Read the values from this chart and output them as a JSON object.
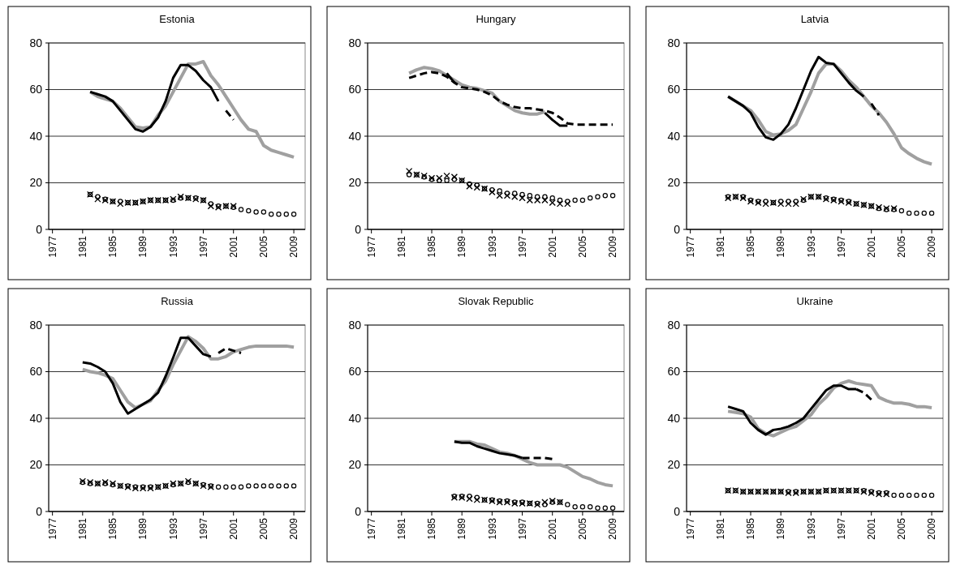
{
  "chart_data": [
    {
      "type": "line",
      "title": "Estonia",
      "x": [
        1982,
        1983,
        1984,
        1985,
        1986,
        1987,
        1988,
        1989,
        1990,
        1991,
        1992,
        1993,
        1994,
        1995,
        1996,
        1997,
        1998,
        1999,
        2000,
        2001,
        2002,
        2003,
        2004,
        2005,
        2006,
        2007,
        2008,
        2009
      ],
      "xlim": [
        1976.5,
        2010.5
      ],
      "xticks": [
        1977,
        1981,
        1985,
        1989,
        1993,
        1997,
        2001,
        2005,
        2009
      ],
      "ylim": [
        0,
        80
      ],
      "yticks": [
        0,
        20,
        40,
        60,
        80
      ],
      "grid": "y",
      "series": [
        {
          "type": "line",
          "color": "#a0a0a0",
          "line_style": "solid",
          "values": [
            59,
            57,
            56,
            55,
            52,
            48,
            44,
            43.5,
            44,
            49,
            53,
            59,
            65,
            71,
            71,
            72,
            66,
            62,
            57,
            52,
            47,
            43,
            42,
            36,
            34,
            33,
            32,
            31
          ]
        },
        {
          "type": "line",
          "color": "#000000",
          "line_style": "solid",
          "values": [
            59,
            58,
            57,
            55,
            51,
            47,
            43,
            42,
            44,
            48,
            55,
            65,
            70.5,
            70.5,
            68,
            64,
            61,
            55,
            null,
            null,
            null,
            null,
            null,
            null,
            null,
            null,
            null,
            null
          ]
        },
        {
          "type": "line",
          "color": "#000000",
          "line_style": "dashed",
          "values": [
            null,
            null,
            null,
            null,
            null,
            null,
            null,
            null,
            null,
            null,
            null,
            null,
            null,
            null,
            null,
            null,
            null,
            null,
            51,
            47,
            null,
            null,
            null,
            null,
            null,
            null,
            null,
            null
          ]
        },
        {
          "type": "scatter",
          "color": "#000000",
          "marker": "cross",
          "values": [
            15,
            13,
            12.5,
            12,
            11,
            11.5,
            11.5,
            12,
            12.5,
            12.5,
            12.5,
            13,
            14,
            13.5,
            13,
            12.5,
            10,
            9.5,
            10,
            10,
            null,
            null,
            null,
            null,
            null,
            null,
            null,
            null
          ]
        },
        {
          "type": "scatter",
          "color": "#000000",
          "marker": "circle",
          "values": [
            15,
            14,
            13,
            12,
            12,
            11.5,
            11.5,
            12,
            12.5,
            12.5,
            12.5,
            12.5,
            13.5,
            13.5,
            13.5,
            12.5,
            11,
            10,
            10,
            9.5,
            8.5,
            8,
            7.5,
            7.5,
            6.5,
            6.5,
            6.5,
            6.5
          ]
        }
      ]
    },
    {
      "type": "line",
      "title": "Hungary",
      "x": [
        1982,
        1983,
        1984,
        1985,
        1986,
        1987,
        1988,
        1989,
        1990,
        1991,
        1992,
        1993,
        1994,
        1995,
        1996,
        1997,
        1998,
        1999,
        2000,
        2001,
        2002,
        2003,
        2004,
        2005,
        2006,
        2007,
        2008,
        2009
      ],
      "xlim": [
        1976.5,
        2010.5
      ],
      "xticks": [
        1977,
        1981,
        1985,
        1989,
        1993,
        1997,
        2001,
        2005,
        2009
      ],
      "ylim": [
        0,
        80
      ],
      "yticks": [
        0,
        20,
        40,
        60,
        80
      ],
      "grid": "y",
      "series": [
        {
          "type": "line",
          "color": "#a0a0a0",
          "line_style": "solid",
          "values": [
            67,
            68.5,
            69.5,
            69,
            68,
            66,
            64,
            62,
            61,
            60.5,
            59.5,
            58.5,
            55,
            53,
            51,
            50,
            49.5,
            49.5,
            50.5,
            null,
            null,
            null,
            null,
            null,
            null,
            null,
            null,
            null
          ]
        },
        {
          "type": "line",
          "color": "#000000",
          "line_style": "solid",
          "values": [
            null,
            null,
            null,
            null,
            null,
            67,
            63,
            null,
            null,
            null,
            null,
            null,
            null,
            null,
            null,
            null,
            null,
            null,
            50,
            47,
            44.5,
            44.5,
            null,
            null,
            null,
            null,
            null,
            null
          ]
        },
        {
          "type": "line",
          "color": "#000000",
          "line_style": "dashed",
          "values": [
            65,
            66,
            67,
            67.5,
            67,
            65.5,
            63,
            61,
            60.5,
            60,
            59,
            57.5,
            55,
            53.5,
            52.5,
            52,
            52,
            51.5,
            51,
            50,
            48,
            45.5,
            45,
            45,
            45,
            45,
            45,
            45
          ]
        },
        {
          "type": "scatter",
          "color": "#000000",
          "marker": "cross",
          "values": [
            25,
            23.5,
            23,
            22,
            22,
            23,
            22.5,
            21,
            18.5,
            18,
            17.5,
            16,
            14.5,
            14.5,
            14,
            13.5,
            12.5,
            12.5,
            12.5,
            11.5,
            11,
            11,
            null,
            null,
            null,
            null,
            null,
            null
          ]
        },
        {
          "type": "scatter",
          "color": "#000000",
          "marker": "circle",
          "values": [
            23.5,
            23.5,
            22.5,
            21.5,
            21,
            21,
            21.5,
            21,
            19.5,
            19,
            17.5,
            17,
            16.5,
            15.5,
            15.5,
            15,
            14.5,
            14,
            14,
            13.5,
            12.5,
            12,
            12.5,
            12.5,
            13.5,
            14,
            14.5,
            14.5
          ]
        }
      ]
    },
    {
      "type": "line",
      "title": "Latvia",
      "x": [
        1982,
        1983,
        1984,
        1985,
        1986,
        1987,
        1988,
        1989,
        1990,
        1991,
        1992,
        1993,
        1994,
        1995,
        1996,
        1997,
        1998,
        1999,
        2000,
        2001,
        2002,
        2003,
        2004,
        2005,
        2006,
        2007,
        2008,
        2009
      ],
      "xlim": [
        1976.5,
        2010.5
      ],
      "xticks": [
        1977,
        1981,
        1985,
        1989,
        1993,
        1997,
        2001,
        2005,
        2009
      ],
      "ylim": [
        0,
        80
      ],
      "yticks": [
        0,
        20,
        40,
        60,
        80
      ],
      "grid": "y",
      "series": [
        {
          "type": "line",
          "color": "#a0a0a0",
          "line_style": "solid",
          "values": [
            57,
            55,
            53,
            51,
            47,
            42,
            40.5,
            41,
            42.5,
            45,
            52,
            59,
            67,
            71,
            71,
            68,
            64,
            61,
            57,
            53,
            50,
            46,
            41,
            35,
            32.5,
            30.5,
            29,
            28
          ]
        },
        {
          "type": "line",
          "color": "#000000",
          "line_style": "solid",
          "values": [
            57,
            55,
            53,
            50,
            44,
            39.5,
            38.5,
            41,
            45,
            52,
            60,
            68,
            74,
            71.5,
            71,
            67,
            63,
            59.5,
            57,
            null,
            null,
            null,
            null,
            null,
            null,
            null,
            null,
            null
          ]
        },
        {
          "type": "line",
          "color": "#000000",
          "line_style": "dashed",
          "values": [
            null,
            null,
            null,
            null,
            null,
            null,
            null,
            null,
            null,
            null,
            null,
            null,
            null,
            null,
            null,
            null,
            null,
            null,
            null,
            54,
            49,
            null,
            null,
            null,
            null,
            null,
            null,
            null
          ]
        },
        {
          "type": "scatter",
          "color": "#000000",
          "marker": "cross",
          "values": [
            13.5,
            14,
            13.5,
            12,
            11.5,
            11,
            11.5,
            11,
            11,
            11,
            13,
            14,
            14,
            13,
            12.5,
            12,
            11.5,
            11,
            10.5,
            10,
            9.5,
            9,
            9,
            null,
            null,
            null,
            null,
            null
          ]
        },
        {
          "type": "scatter",
          "color": "#000000",
          "marker": "circle",
          "values": [
            14,
            14,
            14,
            12.5,
            12,
            12,
            11.5,
            12,
            12,
            12,
            12.5,
            14,
            14,
            13.5,
            13,
            12.5,
            12,
            11,
            10.5,
            10,
            9,
            8.5,
            8.5,
            8,
            7,
            7,
            7,
            7
          ]
        }
      ]
    },
    {
      "type": "line",
      "title": "Russia",
      "x": [
        1981,
        1982,
        1983,
        1984,
        1985,
        1986,
        1987,
        1988,
        1989,
        1990,
        1991,
        1992,
        1993,
        1994,
        1995,
        1996,
        1997,
        1998,
        1999,
        2000,
        2001,
        2002,
        2003,
        2004,
        2005,
        2006,
        2007,
        2008,
        2009
      ],
      "xlim": [
        1976.5,
        2010.5
      ],
      "xticks": [
        1977,
        1981,
        1985,
        1989,
        1993,
        1997,
        2001,
        2005,
        2009
      ],
      "ylim": [
        0,
        80
      ],
      "yticks": [
        0,
        20,
        40,
        60,
        80
      ],
      "grid": "y",
      "series": [
        {
          "type": "line",
          "color": "#a0a0a0",
          "line_style": "solid",
          "values": [
            61,
            60,
            59.5,
            58.5,
            57,
            52,
            47,
            44.5,
            46,
            47.5,
            52,
            56,
            63,
            69,
            75,
            73,
            70,
            65.5,
            65.5,
            66.5,
            68.5,
            69.5,
            70.5,
            71,
            71,
            71,
            71,
            71,
            70.5
          ]
        },
        {
          "type": "line",
          "color": "#000000",
          "line_style": "solid",
          "values": [
            64,
            63.5,
            62,
            60,
            55,
            47,
            42,
            44,
            46,
            48,
            51,
            58,
            66,
            74.5,
            74.5,
            71,
            67.5,
            66.5,
            null,
            null,
            null,
            null,
            null,
            null,
            null,
            null,
            null,
            null,
            null
          ]
        },
        {
          "type": "line",
          "color": "#000000",
          "line_style": "dashed",
          "values": [
            null,
            null,
            null,
            null,
            null,
            null,
            null,
            null,
            null,
            null,
            null,
            null,
            null,
            null,
            null,
            null,
            null,
            null,
            68,
            70,
            69,
            68,
            null,
            null,
            null,
            null,
            null,
            null,
            null
          ]
        },
        {
          "type": "scatter",
          "color": "#000000",
          "marker": "cross",
          "values": [
            13,
            12.5,
            12,
            12.5,
            12,
            11,
            10.5,
            10,
            10,
            10,
            10.5,
            11,
            12,
            12,
            13,
            12,
            11,
            10.5,
            null,
            null,
            null,
            null,
            null,
            null,
            null,
            null,
            null,
            null,
            null
          ]
        },
        {
          "type": "scatter",
          "color": "#000000",
          "marker": "circle",
          "values": [
            12.5,
            12,
            12,
            12,
            11.5,
            11,
            11,
            10.5,
            10.5,
            10.5,
            10.5,
            11,
            11.5,
            12,
            12.5,
            12,
            11.5,
            11,
            10.5,
            10.5,
            10.5,
            10.5,
            11,
            11,
            11,
            11,
            11,
            11,
            11
          ]
        }
      ]
    },
    {
      "type": "line",
      "title": "Slovak Republic",
      "x": [
        1988,
        1989,
        1990,
        1991,
        1992,
        1993,
        1994,
        1995,
        1996,
        1997,
        1998,
        1999,
        2000,
        2001,
        2002,
        2003,
        2004,
        2005,
        2006,
        2007,
        2008,
        2009
      ],
      "xlim": [
        1976.5,
        2010.5
      ],
      "xticks": [
        1977,
        1981,
        1985,
        1989,
        1993,
        1997,
        2001,
        2005,
        2009
      ],
      "ylim": [
        0,
        80
      ],
      "yticks": [
        0,
        20,
        40,
        60,
        80
      ],
      "grid": "y",
      "series": [
        {
          "type": "line",
          "color": "#a0a0a0",
          "line_style": "solid",
          "values": [
            30,
            30,
            30,
            29,
            28.5,
            27,
            25.5,
            25,
            24,
            22.5,
            21,
            20,
            20,
            20,
            20,
            19,
            17,
            15,
            14,
            12.5,
            11.5,
            11
          ]
        },
        {
          "type": "line",
          "color": "#000000",
          "line_style": "solid",
          "values": [
            30,
            29.5,
            29.5,
            28,
            27,
            26,
            25,
            24.5,
            24,
            23,
            null,
            null,
            null,
            null,
            null,
            null,
            null,
            null,
            null,
            null,
            null,
            null
          ]
        },
        {
          "type": "line",
          "color": "#000000",
          "line_style": "dashed",
          "values": [
            null,
            null,
            null,
            null,
            null,
            null,
            null,
            null,
            null,
            23,
            23,
            23,
            23,
            22.5,
            null,
            null,
            null,
            null,
            null,
            null,
            null,
            null
          ]
        },
        {
          "type": "scatter",
          "color": "#000000",
          "marker": "cross",
          "values": [
            6,
            6,
            5.5,
            5,
            5,
            4.5,
            4,
            4,
            3.5,
            3.5,
            3.5,
            3,
            4,
            4.5,
            4,
            null,
            null,
            null,
            null,
            null,
            null,
            null
          ]
        },
        {
          "type": "scatter",
          "color": "#000000",
          "marker": "circle",
          "values": [
            6.5,
            6.5,
            6.5,
            6,
            5,
            5,
            4.5,
            4.5,
            4,
            4,
            3.5,
            3.5,
            3,
            4,
            4,
            3,
            2,
            2,
            2,
            1.5,
            1.5,
            1.5
          ]
        }
      ]
    },
    {
      "type": "line",
      "title": "Ukraine",
      "x": [
        1982,
        1983,
        1984,
        1985,
        1986,
        1987,
        1988,
        1989,
        1990,
        1991,
        1992,
        1993,
        1994,
        1995,
        1996,
        1997,
        1998,
        1999,
        2000,
        2001,
        2002,
        2003,
        2004,
        2005,
        2006,
        2007,
        2008,
        2009
      ],
      "xlim": [
        1976.5,
        2010.5
      ],
      "xticks": [
        1977,
        1981,
        1985,
        1989,
        1993,
        1997,
        2001,
        2005,
        2009
      ],
      "ylim": [
        0,
        80
      ],
      "yticks": [
        0,
        20,
        40,
        60,
        80
      ],
      "grid": "y",
      "series": [
        {
          "type": "line",
          "color": "#a0a0a0",
          "line_style": "solid",
          "values": [
            43,
            42.5,
            42,
            40.5,
            35.5,
            33.5,
            32.5,
            34,
            35.5,
            36.5,
            39,
            41.5,
            46,
            49,
            53,
            55,
            56,
            55,
            54.5,
            54,
            49,
            47.5,
            46.5,
            46.5,
            46,
            45,
            45,
            44.5
          ]
        },
        {
          "type": "line",
          "color": "#000000",
          "line_style": "solid",
          "values": [
            45,
            44,
            43,
            38,
            35,
            33,
            35,
            35.5,
            36.5,
            38,
            40,
            44,
            48,
            52,
            54,
            54,
            52.5,
            52.5,
            null,
            null,
            null,
            null,
            null,
            null,
            null,
            null,
            null,
            null
          ]
        },
        {
          "type": "line",
          "color": "#000000",
          "line_style": "dashed",
          "values": [
            null,
            null,
            null,
            null,
            null,
            null,
            null,
            null,
            null,
            null,
            null,
            null,
            null,
            null,
            null,
            null,
            null,
            52.5,
            51,
            48,
            null,
            null,
            null,
            null,
            null,
            null,
            null,
            null
          ]
        },
        {
          "type": "scatter",
          "color": "#000000",
          "marker": "cross",
          "values": [
            9,
            9,
            8.5,
            8.5,
            8.5,
            8.5,
            8.5,
            8.5,
            8,
            8,
            8.5,
            8.5,
            8.5,
            9,
            9,
            9,
            9,
            9,
            8.5,
            8,
            7.5,
            7.5,
            null,
            null,
            null,
            null,
            null,
            null
          ]
        },
        {
          "type": "scatter",
          "color": "#000000",
          "marker": "circle",
          "values": [
            9,
            9,
            8.5,
            8.5,
            8.5,
            8.5,
            8.5,
            8.5,
            8.5,
            8.5,
            8.5,
            8.5,
            8.5,
            9,
            9,
            9,
            9,
            9,
            9,
            8.5,
            8,
            8,
            7,
            7,
            7,
            7,
            7,
            7
          ]
        }
      ]
    }
  ]
}
